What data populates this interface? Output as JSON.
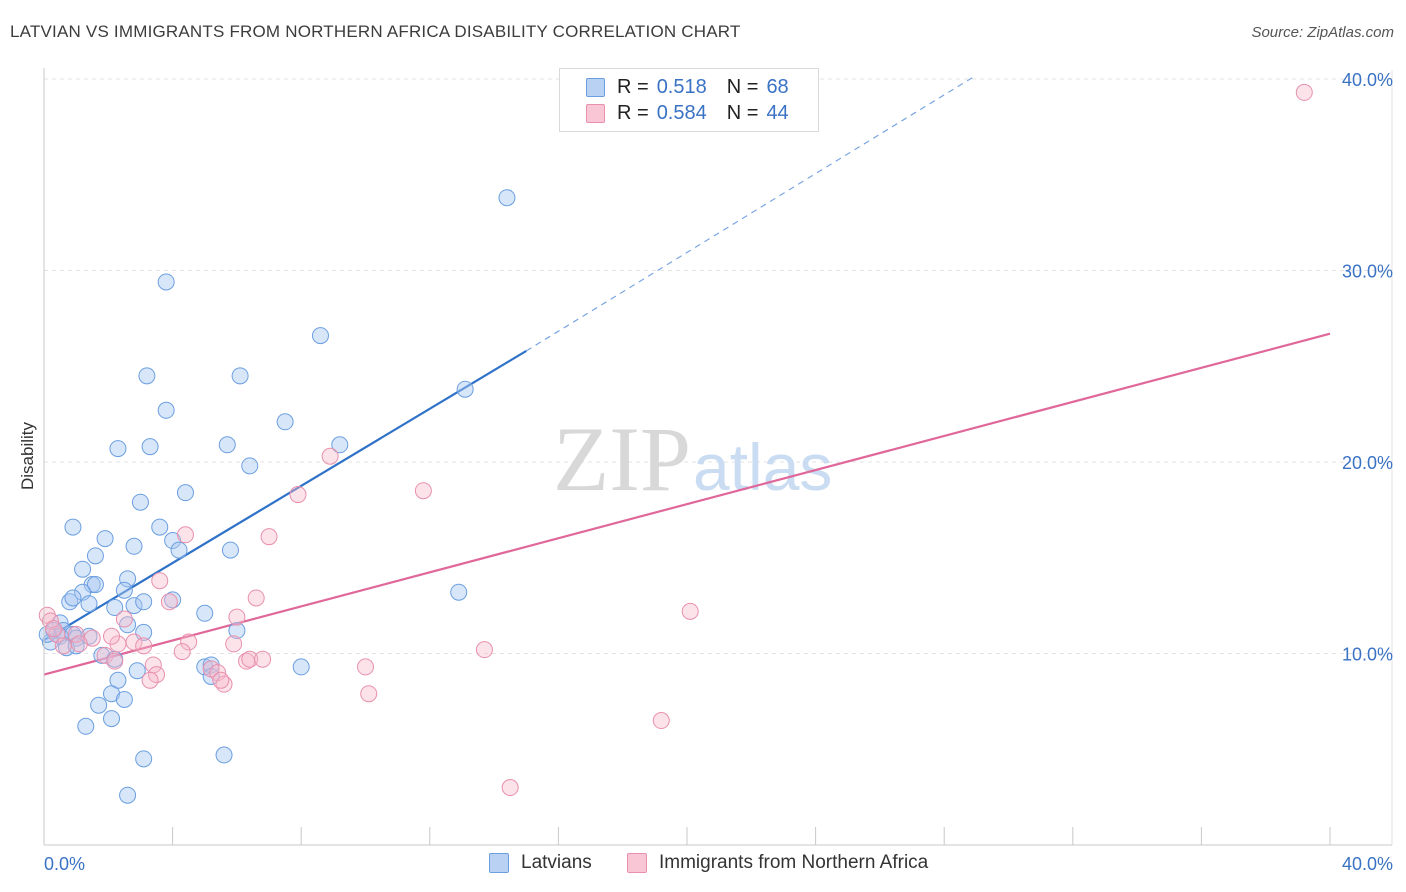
{
  "title": "LATVIAN VS IMMIGRANTS FROM NORTHERN AFRICA DISABILITY CORRELATION CHART",
  "source": "Source: ZipAtlas.com",
  "legend": {
    "r_label": "R =",
    "n_label": "N =",
    "series": [
      {
        "name": "Latvians",
        "r": "0.518",
        "n": "68",
        "fill": "#a9c8f2",
        "stroke": "#6b9fe0"
      },
      {
        "name": "Immigrants from Northern Africa",
        "r": "0.584",
        "n": "44",
        "fill": "#f7b8cb",
        "stroke": "#e890ad"
      }
    ]
  },
  "watermark": {
    "zip": "ZIP",
    "atlas": "atlas"
  },
  "chart_data": {
    "type": "scatter",
    "title": "LATVIAN VS IMMIGRANTS FROM NORTHERN AFRICA DISABILITY CORRELATION CHART",
    "xlabel": "",
    "ylabel": "Disability",
    "xlim": [
      0,
      40
    ],
    "ylim": [
      0,
      40
    ],
    "x_tick_labels": [
      "0.0%",
      "40.0%"
    ],
    "y_ticks": [
      10,
      20,
      30,
      40
    ],
    "y_tick_labels": [
      "10.0%",
      "20.0%",
      "30.0%",
      "40.0%"
    ],
    "grid": true,
    "series": [
      {
        "name": "Latvians",
        "color": "#6b9fe0",
        "trend": {
          "x0": 0.0,
          "y0": 10.7,
          "x1": 15.0,
          "y1": 25.8,
          "dash_to_x": 29.0,
          "dash_to_y": 40.2,
          "color": "#2f72c8"
        },
        "points": [
          [
            14.4,
            33.8
          ],
          [
            3.8,
            29.4
          ],
          [
            8.6,
            26.6
          ],
          [
            3.2,
            24.5
          ],
          [
            6.1,
            24.5
          ],
          [
            13.1,
            23.8
          ],
          [
            3.8,
            22.7
          ],
          [
            7.5,
            22.1
          ],
          [
            2.3,
            20.7
          ],
          [
            3.3,
            20.8
          ],
          [
            5.7,
            20.9
          ],
          [
            9.2,
            20.9
          ],
          [
            6.4,
            19.8
          ],
          [
            4.4,
            18.4
          ],
          [
            3.0,
            17.9
          ],
          [
            0.9,
            16.6
          ],
          [
            3.6,
            16.6
          ],
          [
            1.9,
            16.0
          ],
          [
            4.0,
            15.9
          ],
          [
            2.8,
            15.6
          ],
          [
            4.2,
            15.4
          ],
          [
            5.8,
            15.4
          ],
          [
            1.6,
            15.1
          ],
          [
            1.2,
            14.4
          ],
          [
            1.5,
            13.6
          ],
          [
            1.6,
            13.6
          ],
          [
            2.6,
            13.9
          ],
          [
            2.5,
            13.3
          ],
          [
            1.2,
            13.2
          ],
          [
            12.9,
            13.2
          ],
          [
            0.8,
            12.7
          ],
          [
            0.9,
            12.9
          ],
          [
            1.4,
            12.6
          ],
          [
            2.8,
            12.5
          ],
          [
            3.1,
            12.7
          ],
          [
            4.0,
            12.8
          ],
          [
            2.2,
            12.4
          ],
          [
            5.0,
            12.1
          ],
          [
            0.5,
            11.6
          ],
          [
            0.3,
            11.2
          ],
          [
            0.6,
            11.2
          ],
          [
            2.6,
            11.5
          ],
          [
            0.5,
            10.9
          ],
          [
            0.9,
            11.0
          ],
          [
            1.0,
            10.8
          ],
          [
            1.4,
            10.9
          ],
          [
            3.1,
            11.1
          ],
          [
            6.0,
            11.2
          ],
          [
            0.2,
            10.6
          ],
          [
            0.7,
            10.3
          ],
          [
            1.0,
            10.4
          ],
          [
            1.8,
            9.9
          ],
          [
            2.2,
            9.7
          ],
          [
            5.0,
            9.3
          ],
          [
            5.2,
            9.4
          ],
          [
            8.0,
            9.3
          ],
          [
            2.9,
            9.1
          ],
          [
            5.2,
            8.8
          ],
          [
            2.3,
            8.6
          ],
          [
            2.1,
            7.9
          ],
          [
            1.7,
            7.3
          ],
          [
            2.5,
            7.6
          ],
          [
            2.1,
            6.6
          ],
          [
            1.3,
            6.2
          ],
          [
            5.6,
            4.7
          ],
          [
            3.1,
            4.5
          ],
          [
            2.6,
            2.6
          ],
          [
            0.1,
            11.0
          ]
        ]
      },
      {
        "name": "Immigrants from Northern Africa",
        "color": "#e890ad",
        "trend": {
          "x0": 0.0,
          "y0": 8.9,
          "x1": 40.0,
          "y1": 26.7,
          "color": "#e0679a"
        },
        "points": [
          [
            39.2,
            39.3
          ],
          [
            8.9,
            20.3
          ],
          [
            11.8,
            18.5
          ],
          [
            7.9,
            18.3
          ],
          [
            4.4,
            16.2
          ],
          [
            7.0,
            16.1
          ],
          [
            3.6,
            13.8
          ],
          [
            6.6,
            12.9
          ],
          [
            3.9,
            12.7
          ],
          [
            20.1,
            12.2
          ],
          [
            6.0,
            11.9
          ],
          [
            2.5,
            11.8
          ],
          [
            0.1,
            12.0
          ],
          [
            0.2,
            11.7
          ],
          [
            0.4,
            11.0
          ],
          [
            1.0,
            11.0
          ],
          [
            1.5,
            10.8
          ],
          [
            2.8,
            10.6
          ],
          [
            4.5,
            10.6
          ],
          [
            0.6,
            10.4
          ],
          [
            1.1,
            10.5
          ],
          [
            2.3,
            10.5
          ],
          [
            3.1,
            10.4
          ],
          [
            4.3,
            10.1
          ],
          [
            5.9,
            10.5
          ],
          [
            13.7,
            10.2
          ],
          [
            1.9,
            9.9
          ],
          [
            2.2,
            9.6
          ],
          [
            3.4,
            9.4
          ],
          [
            6.3,
            9.6
          ],
          [
            6.4,
            9.7
          ],
          [
            6.8,
            9.7
          ],
          [
            10.0,
            9.3
          ],
          [
            5.2,
            9.2
          ],
          [
            5.4,
            9.0
          ],
          [
            3.5,
            8.9
          ],
          [
            3.3,
            8.6
          ],
          [
            5.6,
            8.4
          ],
          [
            5.5,
            8.6
          ],
          [
            10.1,
            7.9
          ],
          [
            19.2,
            6.5
          ],
          [
            14.5,
            3.0
          ],
          [
            2.1,
            10.9
          ],
          [
            0.3,
            11.3
          ]
        ]
      }
    ]
  }
}
